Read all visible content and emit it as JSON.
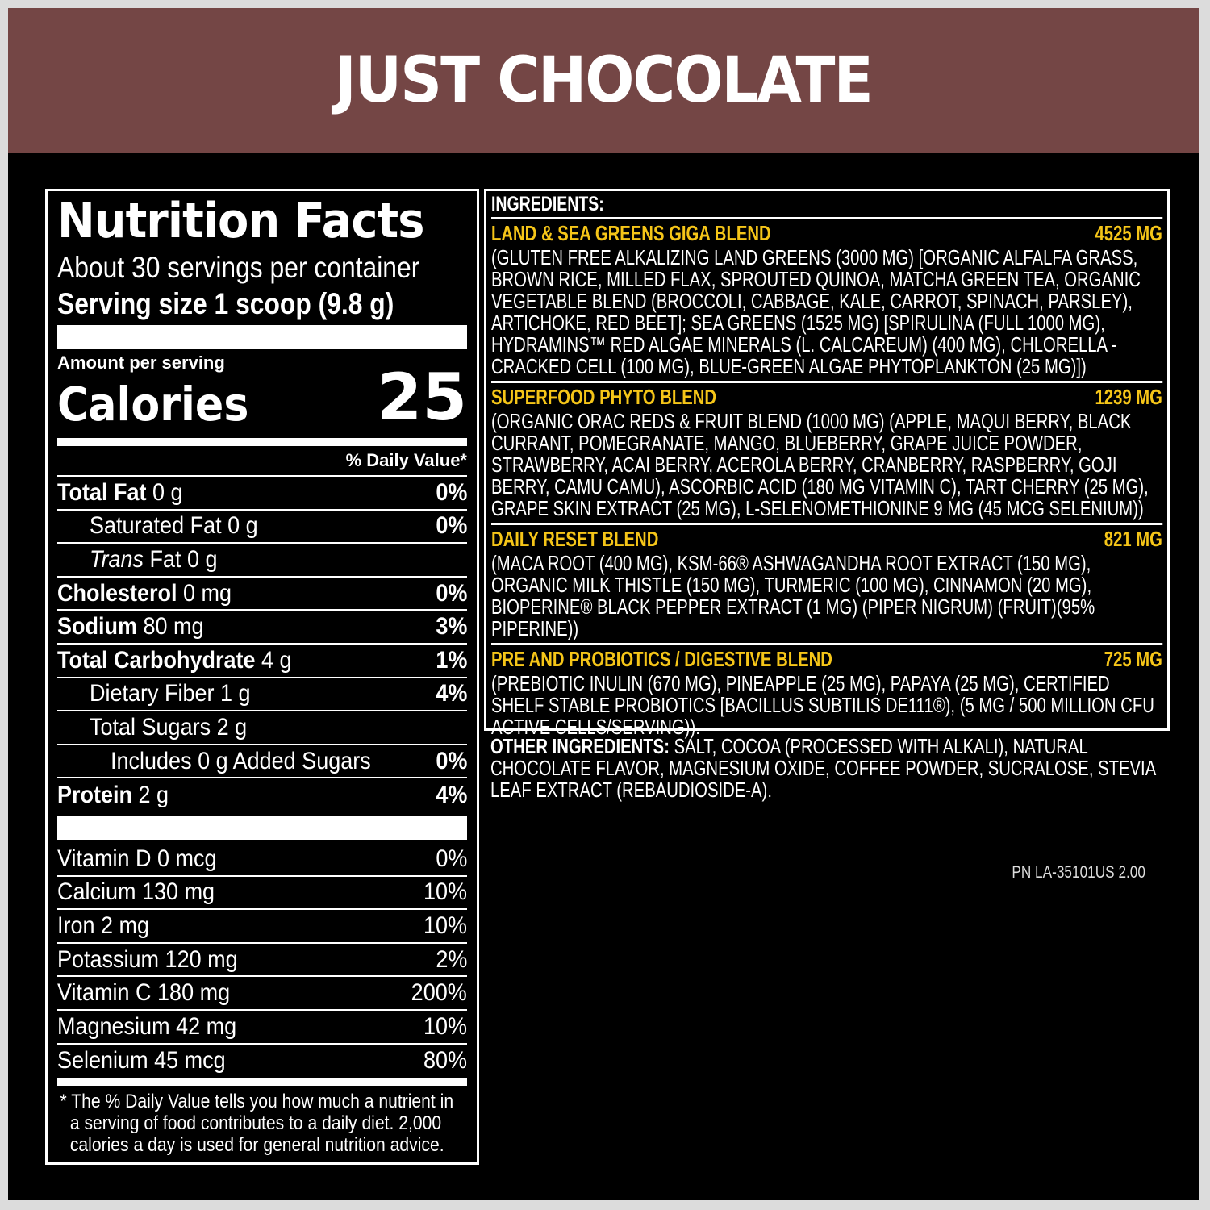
{
  "title": "JUST CHOCOLATE",
  "nutrition": {
    "heading": "Nutrition Facts",
    "servings": "About 30 servings per container",
    "serving_size": "Serving size 1 scoop (9.8 g)",
    "amount_per_serving": "Amount per serving",
    "calories_label": "Calories",
    "calories": "25",
    "dv_header": "% Daily Value*",
    "rows": [
      {
        "name": "Total Fat",
        "amount": "0 g",
        "dv": "0%"
      },
      {
        "name": "Saturated Fat 0 g",
        "dv": "0%"
      },
      {
        "name": "Trans",
        "name2": " Fat 0 g",
        "dv": ""
      },
      {
        "name": "Cholesterol",
        "amount": "0 mg",
        "dv": "0%"
      },
      {
        "name": "Sodium",
        "amount": "80 mg",
        "dv": "3%"
      },
      {
        "name": "Total Carbohydrate",
        "amount": "4 g",
        "dv": "1%"
      },
      {
        "name": "Dietary Fiber 1 g",
        "dv": "4%"
      },
      {
        "name": "Total Sugars 2 g",
        "dv": ""
      },
      {
        "name": "Includes 0 g Added Sugars",
        "dv": "0%"
      },
      {
        "name": "Protein",
        "amount": "2 g",
        "dv": "4%"
      }
    ],
    "vitamins": [
      {
        "name": "Vitamin D 0 mcg",
        "dv": "0%"
      },
      {
        "name": "Calcium 130 mg",
        "dv": "10%"
      },
      {
        "name": "Iron 2 mg",
        "dv": "10%"
      },
      {
        "name": "Potassium 120 mg",
        "dv": "2%"
      },
      {
        "name": "Vitamin C 180 mg",
        "dv": "200%"
      },
      {
        "name": "Magnesium 42 mg",
        "dv": "10%"
      },
      {
        "name": "Selenium 45 mcg",
        "dv": "80%"
      }
    ],
    "footnote": "* The % Daily Value tells you how much a nutrient in a serving of food contributes to a daily diet. 2,000 calories a day is used for general nutrition advice."
  },
  "ingredients": {
    "heading": "INGREDIENTS:",
    "blends": [
      {
        "name": "LAND & SEA GREENS GIGA BLEND",
        "amount": "4525 MG",
        "text": "(GLUTEN FREE ALKALIZING LAND GREENS (3000 MG) [ORGANIC ALFALFA GRASS, BROWN RICE, MILLED FLAX, SPROUTED QUINOA, MATCHA GREEN TEA, ORGANIC VEGETABLE BLEND (BROCCOLI, CABBAGE, KALE, CARROT, SPINACH, PARSLEY), ARTICHOKE, RED BEET]; SEA GREENS (1525 MG) [SPIRULINA (FULL 1000 MG), HYDRAMINS™ RED ALGAE MINERALS (L. CALCAREUM) (400 MG), CHLORELLA - CRACKED CELL (100 MG), BLUE-GREEN ALGAE PHYTOPLANKTON (25 MG)])"
      },
      {
        "name": "SUPERFOOD PHYTO BLEND",
        "amount": "1239 MG",
        "text": "(ORGANIC ORAC REDS & FRUIT BLEND (1000 MG) (APPLE, MAQUI BERRY, BLACK CURRANT, POMEGRANATE, MANGO, BLUEBERRY, GRAPE JUICE POWDER, STRAWBERRY, ACAI BERRY, ACEROLA BERRY, CRANBERRY, RASPBERRY, GOJI BERRY, CAMU CAMU), ASCORBIC ACID (180 MG VITAMIN C), TART CHERRY (25 MG), GRAPE SKIN EXTRACT (25 MG), L-SELENOMETHIONINE 9 MG (45 MCG SELENIUM))"
      },
      {
        "name": "DAILY RESET BLEND",
        "amount": "821 MG",
        "text": "(MACA ROOT (400 MG), KSM-66® ASHWAGANDHA ROOT EXTRACT (150 MG), ORGANIC MILK THISTLE (150 MG), TURMERIC (100 MG), CINNAMON (20 MG), BIOPERINE® BLACK PEPPER EXTRACT (1 MG) (PIPER NIGRUM) (FRUIT)(95% PIPERINE))"
      },
      {
        "name": "PRE AND PROBIOTICS / DIGESTIVE BLEND",
        "amount": "725 MG",
        "text": "(PREBIOTIC INULIN (670 MG), PINEAPPLE (25 MG), PAPAYA (25 MG), CERTIFIED SHELF STABLE PROBIOTICS [BACILLUS SUBTILIS DE111®), (5 MG / 500 MILLION CFU ACTIVE CELLS/SERVING))."
      }
    ],
    "other_label": "OTHER INGREDIENTS:",
    "other_text": " SALT, COCOA (PROCESSED WITH ALKALI), NATURAL CHOCOLATE FLAVOR, MAGNESIUM OXIDE, COFFEE POWDER, SUCRALOSE, STEVIA LEAF EXTRACT (REBAUDIOSIDE-A)."
  },
  "part_number": "PN LA-35101US 2.00",
  "colors": {
    "header": "#744645",
    "blend_heading": "#f5c518",
    "background": "#000000"
  }
}
